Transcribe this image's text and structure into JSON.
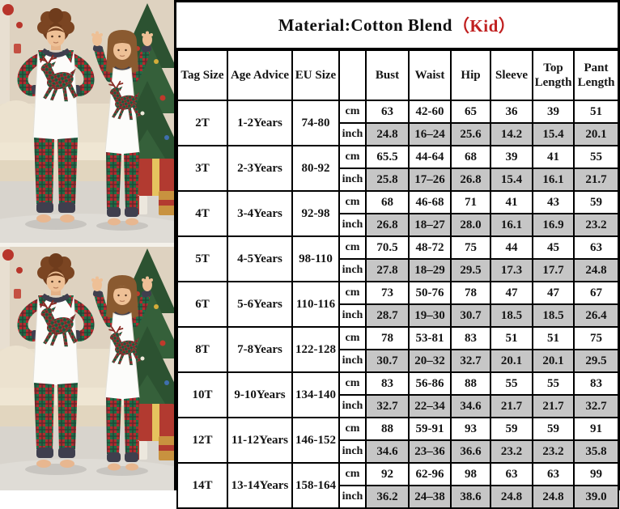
{
  "chart_data": {
    "type": "table",
    "title": "Material:Cotton Blend（Kid）",
    "title_parts": {
      "material": "Material:Cotton Blend",
      "variant": "（Kid）"
    },
    "columns": [
      "Tag Size",
      "Age Advice",
      "EU Size",
      "",
      "Bust",
      "Waist",
      "Hip",
      "Sleeve",
      "Top Length",
      "Pant Length"
    ],
    "units": [
      "cm",
      "inch"
    ],
    "rows": [
      {
        "tag": "2T",
        "age": "1-2Years",
        "eu": "74-80",
        "cm": [
          "63",
          "42-60",
          "65",
          "36",
          "39",
          "51"
        ],
        "inch": [
          "24.8",
          "16–24",
          "25.6",
          "14.2",
          "15.4",
          "20.1"
        ]
      },
      {
        "tag": "3T",
        "age": "2-3Years",
        "eu": "80-92",
        "cm": [
          "65.5",
          "44-64",
          "68",
          "39",
          "41",
          "55"
        ],
        "inch": [
          "25.8",
          "17–26",
          "26.8",
          "15.4",
          "16.1",
          "21.7"
        ]
      },
      {
        "tag": "4T",
        "age": "3-4Years",
        "eu": "92-98",
        "cm": [
          "68",
          "46-68",
          "71",
          "41",
          "43",
          "59"
        ],
        "inch": [
          "26.8",
          "18–27",
          "28.0",
          "16.1",
          "16.9",
          "23.2"
        ]
      },
      {
        "tag": "5T",
        "age": "4-5Years",
        "eu": "98-110",
        "cm": [
          "70.5",
          "48-72",
          "75",
          "44",
          "45",
          "63"
        ],
        "inch": [
          "27.8",
          "18–29",
          "29.5",
          "17.3",
          "17.7",
          "24.8"
        ]
      },
      {
        "tag": "6T",
        "age": "5-6Years",
        "eu": "110-116",
        "cm": [
          "73",
          "50-76",
          "78",
          "47",
          "47",
          "67"
        ],
        "inch": [
          "28.7",
          "19–30",
          "30.7",
          "18.5",
          "18.5",
          "26.4"
        ]
      },
      {
        "tag": "8T",
        "age": "7-8Years",
        "eu": "122-128",
        "cm": [
          "78",
          "53-81",
          "83",
          "51",
          "51",
          "75"
        ],
        "inch": [
          "30.7",
          "20–32",
          "32.7",
          "20.1",
          "20.1",
          "29.5"
        ]
      },
      {
        "tag": "10T",
        "age": "9-10Years",
        "eu": "134-140",
        "cm": [
          "83",
          "56-86",
          "88",
          "55",
          "55",
          "83"
        ],
        "inch": [
          "32.7",
          "22–34",
          "34.6",
          "21.7",
          "21.7",
          "32.7"
        ]
      },
      {
        "tag": "12T",
        "age": "11-12Years",
        "eu": "146-152",
        "cm": [
          "88",
          "59-91",
          "93",
          "59",
          "59",
          "91"
        ],
        "inch": [
          "34.6",
          "23–36",
          "36.6",
          "23.2",
          "23.2",
          "35.8"
        ]
      },
      {
        "tag": "14T",
        "age": "13-14Years",
        "eu": "158-164",
        "cm": [
          "92",
          "62-96",
          "98",
          "63",
          "63",
          "99"
        ],
        "inch": [
          "36.2",
          "24–38",
          "38.6",
          "24.8",
          "24.8",
          "39.0"
        ]
      }
    ]
  },
  "photo": {
    "alt": "Two children wearing matching Christmas pajamas: white raglan tops with buffalo-plaid sleeves and a plaid leaping reindeer print, plaid pants, standing by a Christmas tree with gifts",
    "repeat_count": 2
  },
  "colors": {
    "title_accent": "#c02020",
    "inch_value_bg": "#c6c6c6",
    "table_border": "#000000",
    "table_bg": "#ffffff",
    "plaid_red": "#b32a2e",
    "plaid_green": "#1f6f47",
    "plaid_dark": "#20282a",
    "trim_navy": "#3f3f4e",
    "wall_beige": "#ded2c0",
    "sofa_cream": "#e9dfcc",
    "tree_green": "#2c5231",
    "gift_red": "#b23a30",
    "gift_gold": "#c8923f"
  }
}
